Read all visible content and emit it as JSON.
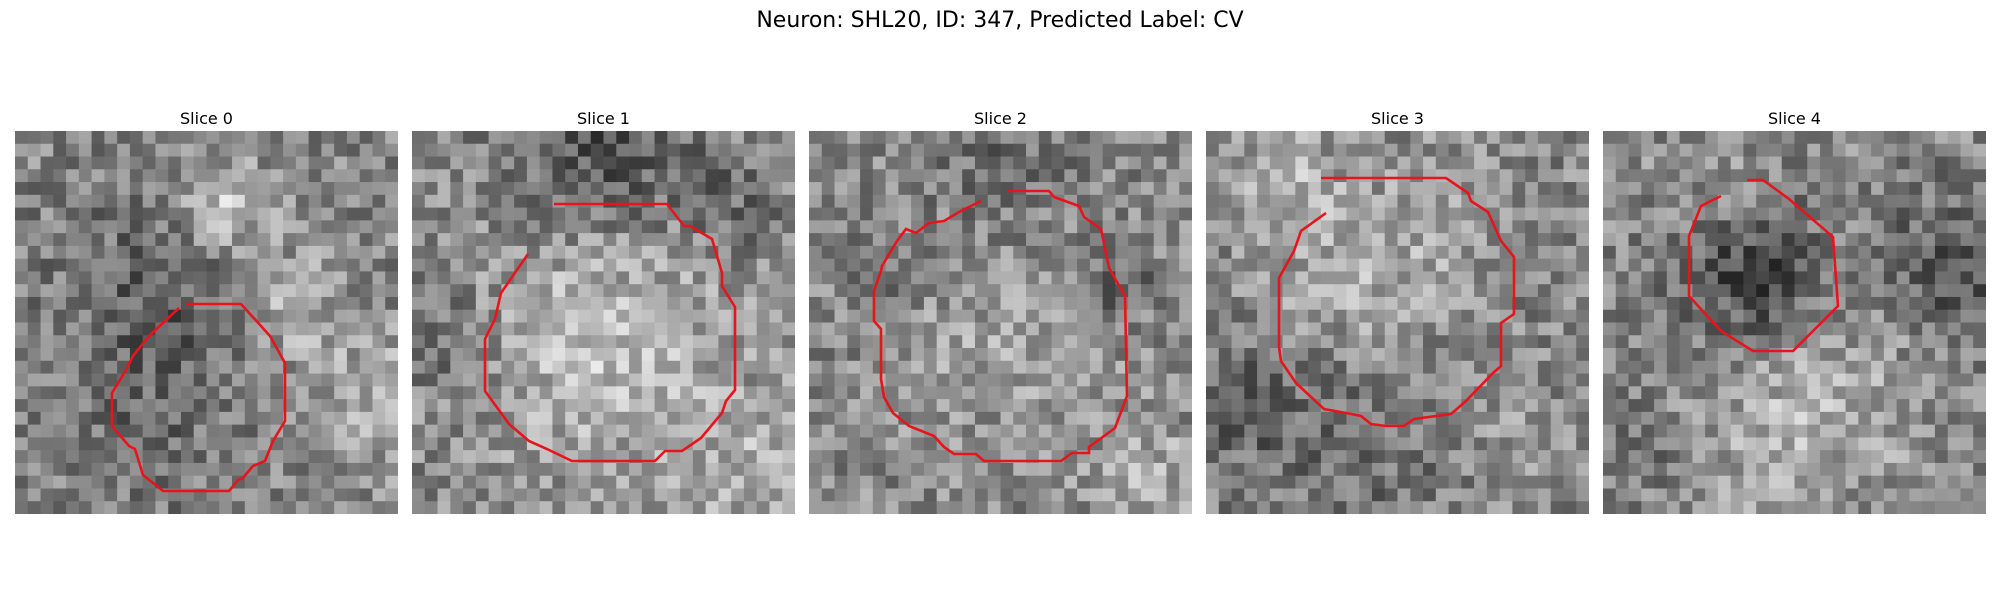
{
  "figure": {
    "title": "Neuron: SHL20, ID: 347, Predicted Label: CV",
    "outline_color": "#e8141c",
    "colormap": "grayscale"
  },
  "slices": [
    {
      "title": "Slice 0"
    },
    {
      "title": "Slice 1"
    },
    {
      "title": "Slice 2"
    },
    {
      "title": "Slice 3"
    },
    {
      "title": "Slice 4"
    }
  ]
}
